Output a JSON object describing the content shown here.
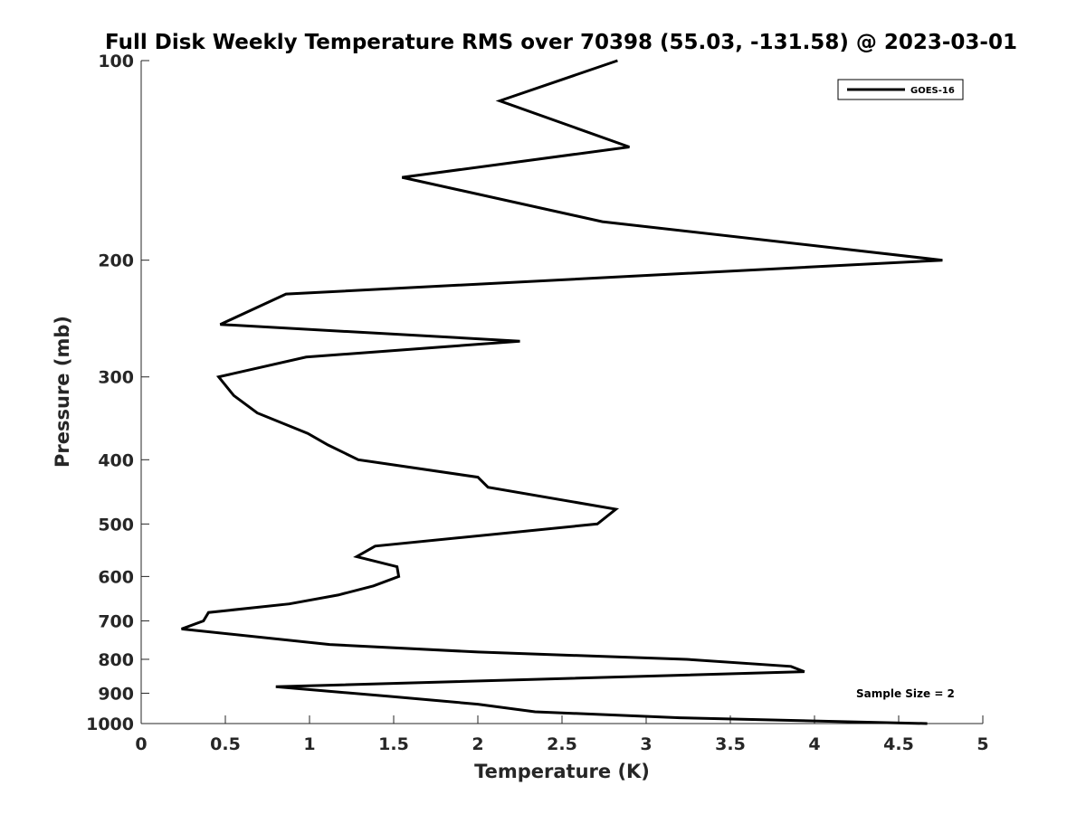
{
  "chart_data": {
    "type": "line",
    "title": "Full Disk Weekly Temperature RMS over 70398 (55.03, -131.58) @ 2023-03-01",
    "xlabel": "Temperature (K)",
    "ylabel": "Pressure (mb)",
    "xlim": [
      0,
      5
    ],
    "ylim": [
      100,
      1000
    ],
    "y_scale": "log",
    "y_reversed": true,
    "x_ticks": [
      "0",
      "0.5",
      "1",
      "1.5",
      "2",
      "2.5",
      "3",
      "3.5",
      "4",
      "4.5",
      "5"
    ],
    "y_ticks": [
      "100",
      "200",
      "300",
      "400",
      "500",
      "600",
      "700",
      "800",
      "900",
      "1000"
    ],
    "legend_position": "top-right",
    "grid": false,
    "annotation": "Sample Size = 2",
    "series": [
      {
        "name": "GOES-16",
        "color": "#000000",
        "points": [
          [
            2.83,
            100
          ],
          [
            2.13,
            115
          ],
          [
            2.9,
            135
          ],
          [
            1.55,
            150
          ],
          [
            2.74,
            175
          ],
          [
            4.76,
            200
          ],
          [
            0.86,
            225
          ],
          [
            0.47,
            250
          ],
          [
            2.25,
            265
          ],
          [
            0.98,
            280
          ],
          [
            0.46,
            300
          ],
          [
            0.55,
            320
          ],
          [
            0.69,
            340
          ],
          [
            0.99,
            365
          ],
          [
            1.11,
            380
          ],
          [
            1.29,
            400
          ],
          [
            2.0,
            425
          ],
          [
            2.06,
            440
          ],
          [
            2.82,
            475
          ],
          [
            2.71,
            500
          ],
          [
            1.39,
            540
          ],
          [
            1.28,
            560
          ],
          [
            1.52,
            580
          ],
          [
            1.53,
            600
          ],
          [
            1.38,
            620
          ],
          [
            1.17,
            640
          ],
          [
            0.88,
            660
          ],
          [
            0.4,
            680
          ],
          [
            0.37,
            700
          ],
          [
            0.24,
            720
          ],
          [
            1.12,
            760
          ],
          [
            2.0,
            780
          ],
          [
            3.24,
            800
          ],
          [
            3.86,
            820
          ],
          [
            3.94,
            835
          ],
          [
            0.8,
            880
          ],
          [
            1.48,
            910
          ],
          [
            2.0,
            935
          ],
          [
            2.34,
            960
          ],
          [
            3.2,
            980
          ],
          [
            4.67,
            1000
          ]
        ]
      }
    ]
  }
}
